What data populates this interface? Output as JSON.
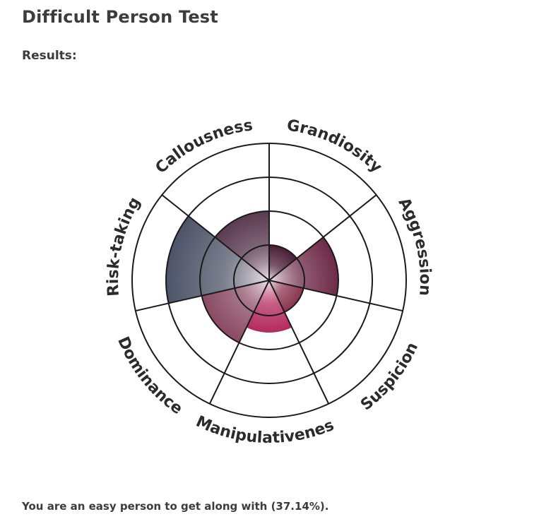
{
  "page": {
    "title": "Difficult Person Test",
    "results_label": "Results:",
    "result_text": "You are an easy person to get along with (37.14%)."
  },
  "chart_data": {
    "type": "polar-area",
    "title": "",
    "categories": [
      "Grandiosity",
      "Aggression",
      "Suspicion",
      "Manipulativeness",
      "Dominance",
      "Risk-taking",
      "Callousness"
    ],
    "values": [
      1,
      2,
      1,
      1.5,
      2,
      3,
      2
    ],
    "rlim": [
      0,
      4
    ],
    "ring_levels": [
      1,
      2,
      3,
      4
    ],
    "grid": true,
    "colors": {
      "Grandiosity": "#4a1e36",
      "Aggression": "#6e2a48",
      "Suspicion": "#8a3550",
      "Manipulativeness": "#b42a5c",
      "Dominance": "#8a4a62",
      "Risk-taking": "#4e5468",
      "Callousness": "#5a3a50"
    }
  }
}
